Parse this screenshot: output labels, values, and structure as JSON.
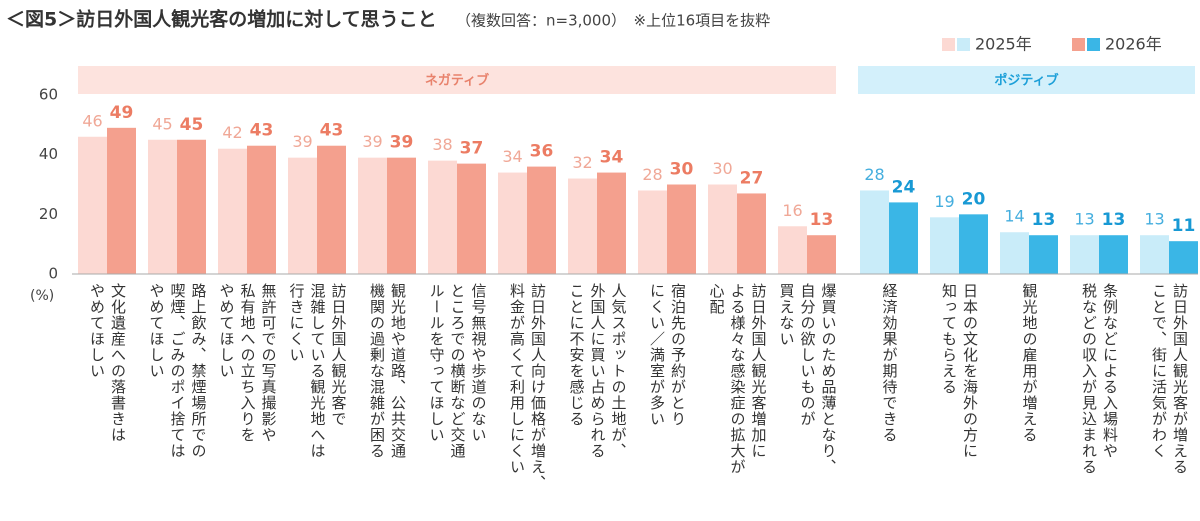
{
  "chart_data": {
    "type": "bar",
    "title": "＜図5＞訪日外国人観光客の増加に対して思うこと",
    "subtitle": "（複数回答：n=3,000）　※上位16項目を抜粋",
    "y_unit": "(%)",
    "categories": [
      "文化遺産への落書きは\nやめてほしい",
      "路上飲み、禁煙場所での\n喫煙、ごみのポイ捨ては\nやめてほしい",
      "無許可での写真撮影や\n私有地への立ち入りを\nやめてほしい",
      "訪日外国人観光客で\n混雑している観光地へは\n行きにくい",
      "観光地や道路、公共交通\n機関の過剰な混雑が困る",
      "信号無視や歩道のない\nところでの横断など交通\nルールを守ってほしい",
      "訪日外国人向け価格が増え、\n料金が高くて利用しにくい",
      "人気スポットの土地が、\n外国人に買い占められる\nことに不安を感じる",
      "宿泊先の予約がとり\nにくい／満室が多い",
      "訪日外国人観光客増加に\nよる様々な感染症の拡大が\n心配",
      "爆買いのため品薄となり、\n自分の欲しいものが\n買えない",
      "経済効果が期待できる",
      "日本の文化を海外の方に\n知ってもらえる",
      "観光地の雇用が増える",
      "条例などによる入場料や\n税などの収入が見込まれる",
      "訪日外国人観光客が増える\nことで、街に活気がわく"
    ],
    "series": [
      {
        "name": "2025年",
        "values": [
          46,
          45,
          42,
          39,
          39,
          38,
          34,
          32,
          28,
          30,
          16,
          28,
          19,
          14,
          13,
          13
        ]
      },
      {
        "name": "2026年",
        "values": [
          49,
          45,
          43,
          43,
          39,
          37,
          36,
          34,
          30,
          27,
          13,
          24,
          20,
          13,
          13,
          11
        ]
      }
    ],
    "groups": [
      {
        "name": "ネガティブ",
        "size": 11,
        "band_color": "#fde3de",
        "text_color": "#e8826c",
        "series_colors": [
          "#fcd9d3",
          "#f4a08e"
        ],
        "label_colors": [
          "#f0a897",
          "#ec7c63"
        ]
      },
      {
        "name": "ポジティブ",
        "size": 5,
        "band_color": "#d3f0fb",
        "text_color": "#1c9fd8",
        "series_colors": [
          "#c9ecf9",
          "#3ab6e6"
        ],
        "label_colors": [
          "#45aede",
          "#1899d4"
        ]
      }
    ],
    "ylim": [
      0,
      60
    ],
    "yticks": [
      0,
      20,
      40,
      60
    ],
    "grid": false
  }
}
